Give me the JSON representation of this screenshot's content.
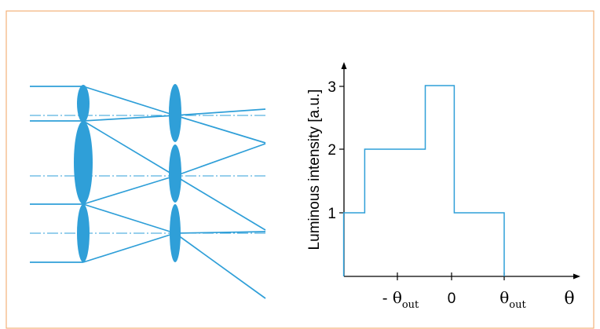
{
  "diagram": {
    "lens_color": "#2f9fd8",
    "frame_color": "#f2b27a"
  },
  "chart_data": {
    "type": "line",
    "ylabel": "Luminous intensity [a.u.]",
    "xlabel": "θ",
    "y_ticks": [
      "1",
      "2",
      "3"
    ],
    "x_ticks": [
      {
        "prefix": "- θ",
        "sub": "out"
      },
      {
        "prefix": "0",
        "sub": ""
      },
      {
        "prefix": "θ",
        "sub": "out"
      }
    ],
    "x_tick_values": [
      -1,
      0,
      1
    ],
    "ylim": [
      0,
      3.3
    ],
    "xlim": [
      -2.05,
      2.5
    ],
    "series": [
      {
        "x": [
          -2.05,
          -2.05,
          -1.65,
          -1.65,
          -0.5,
          -0.5,
          0.05,
          0.05,
          1,
          1
        ],
        "y": [
          0,
          1,
          1,
          2,
          2,
          3,
          3,
          1,
          1,
          0
        ]
      }
    ]
  }
}
